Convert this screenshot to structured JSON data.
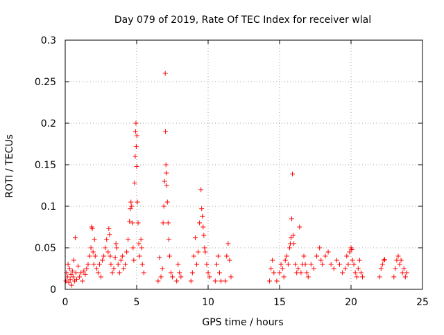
{
  "chart_data": {
    "type": "scatter",
    "title": "Day 079 of 2019, Rate Of TEC Index for receiver wlal",
    "xlabel": "GPS time / hours",
    "ylabel": "ROTI / TECUs",
    "xlim": [
      0,
      25
    ],
    "ylim": [
      0,
      0.3
    ],
    "x_ticks": [
      0,
      5,
      10,
      15,
      20,
      25
    ],
    "y_ticks": [
      0,
      0.05,
      0.1,
      0.15,
      0.2,
      0.25,
      0.3
    ],
    "x_tick_labels": [
      "0",
      "5",
      "10",
      "15",
      "20",
      "25"
    ],
    "y_tick_labels": [
      "0",
      "0.05",
      "0.1",
      "0.15",
      "0.2",
      "0.25",
      "0.3"
    ],
    "grid": true,
    "marker": "+",
    "color": "#ff0000",
    "series": [
      {
        "name": "ROTI",
        "points": [
          [
            0.05,
            0.01
          ],
          [
            0.1,
            0.02
          ],
          [
            0.15,
            0.015
          ],
          [
            0.2,
            0.03
          ],
          [
            0.25,
            0.008
          ],
          [
            0.3,
            0.025
          ],
          [
            0.35,
            0.012
          ],
          [
            0.4,
            0.018
          ],
          [
            0.45,
            0.005
          ],
          [
            0.5,
            0.022
          ],
          [
            0.55,
            0.015
          ],
          [
            0.6,
            0.035
          ],
          [
            0.65,
            0.01
          ],
          [
            0.7,
            0.062
          ],
          [
            0.75,
            0.02
          ],
          [
            0.8,
            0.012
          ],
          [
            0.9,
            0.028
          ],
          [
            1.0,
            0.015
          ],
          [
            1.1,
            0.02
          ],
          [
            1.2,
            0.01
          ],
          [
            1.3,
            0.022
          ],
          [
            1.4,
            0.018
          ],
          [
            1.5,
            0.025
          ],
          [
            1.6,
            0.03
          ],
          [
            1.7,
            0.04
          ],
          [
            1.8,
            0.05
          ],
          [
            1.85,
            0.075
          ],
          [
            1.9,
            0.073
          ],
          [
            1.95,
            0.045
          ],
          [
            2.0,
            0.03
          ],
          [
            2.05,
            0.06
          ],
          [
            2.1,
            0.04
          ],
          [
            2.2,
            0.025
          ],
          [
            2.3,
            0.02
          ],
          [
            2.4,
            0.03
          ],
          [
            2.5,
            0.015
          ],
          [
            2.6,
            0.035
          ],
          [
            2.7,
            0.04
          ],
          [
            2.8,
            0.05
          ],
          [
            2.9,
            0.06
          ],
          [
            3.0,
            0.045
          ],
          [
            3.05,
            0.073
          ],
          [
            3.1,
            0.066
          ],
          [
            3.15,
            0.04
          ],
          [
            3.2,
            0.03
          ],
          [
            3.3,
            0.02
          ],
          [
            3.4,
            0.025
          ],
          [
            3.5,
            0.038
          ],
          [
            3.55,
            0.055
          ],
          [
            3.6,
            0.05
          ],
          [
            3.7,
            0.03
          ],
          [
            3.8,
            0.02
          ],
          [
            3.9,
            0.035
          ],
          [
            4.0,
            0.04
          ],
          [
            4.1,
            0.025
          ],
          [
            4.2,
            0.03
          ],
          [
            4.3,
            0.045
          ],
          [
            4.4,
            0.06
          ],
          [
            4.5,
            0.082
          ],
          [
            4.55,
            0.097
          ],
          [
            4.6,
            0.105
          ],
          [
            4.65,
            0.1
          ],
          [
            4.7,
            0.08
          ],
          [
            4.75,
            0.05
          ],
          [
            4.8,
            0.035
          ],
          [
            4.85,
            0.128
          ],
          [
            4.9,
            0.16
          ],
          [
            4.92,
            0.19
          ],
          [
            4.95,
            0.2
          ],
          [
            4.97,
            0.172
          ],
          [
            5.0,
            0.148
          ],
          [
            5.02,
            0.185
          ],
          [
            5.05,
            0.105
          ],
          [
            5.1,
            0.08
          ],
          [
            5.15,
            0.055
          ],
          [
            5.2,
            0.04
          ],
          [
            5.3,
            0.06
          ],
          [
            5.35,
            0.05
          ],
          [
            5.4,
            0.03
          ],
          [
            5.5,
            0.02
          ],
          [
            6.5,
            0.01
          ],
          [
            6.6,
            0.038
          ],
          [
            6.7,
            0.015
          ],
          [
            6.8,
            0.025
          ],
          [
            6.85,
            0.08
          ],
          [
            6.9,
            0.1
          ],
          [
            6.95,
            0.13
          ],
          [
            7.0,
            0.26
          ],
          [
            7.02,
            0.19
          ],
          [
            7.05,
            0.15
          ],
          [
            7.08,
            0.14
          ],
          [
            7.1,
            0.125
          ],
          [
            7.15,
            0.105
          ],
          [
            7.2,
            0.08
          ],
          [
            7.25,
            0.06
          ],
          [
            7.3,
            0.04
          ],
          [
            7.4,
            0.02
          ],
          [
            7.5,
            0.015
          ],
          [
            7.8,
            0.01
          ],
          [
            7.9,
            0.03
          ],
          [
            8.0,
            0.02
          ],
          [
            8.1,
            0.015
          ],
          [
            8.8,
            0.01
          ],
          [
            8.9,
            0.02
          ],
          [
            9.0,
            0.04
          ],
          [
            9.1,
            0.062
          ],
          [
            9.2,
            0.03
          ],
          [
            9.3,
            0.045
          ],
          [
            9.4,
            0.08
          ],
          [
            9.5,
            0.12
          ],
          [
            9.55,
            0.097
          ],
          [
            9.6,
            0.088
          ],
          [
            9.65,
            0.075
          ],
          [
            9.7,
            0.065
          ],
          [
            9.75,
            0.05
          ],
          [
            9.8,
            0.045
          ],
          [
            9.9,
            0.03
          ],
          [
            10.0,
            0.02
          ],
          [
            10.1,
            0.015
          ],
          [
            10.5,
            0.01
          ],
          [
            10.6,
            0.03
          ],
          [
            10.7,
            0.04
          ],
          [
            10.8,
            0.02
          ],
          [
            10.9,
            0.01
          ],
          [
            11.2,
            0.01
          ],
          [
            11.3,
            0.04
          ],
          [
            11.4,
            0.055
          ],
          [
            11.5,
            0.035
          ],
          [
            11.6,
            0.015
          ],
          [
            14.3,
            0.01
          ],
          [
            14.4,
            0.025
          ],
          [
            14.5,
            0.035
          ],
          [
            14.6,
            0.02
          ],
          [
            14.8,
            0.01
          ],
          [
            15.0,
            0.02
          ],
          [
            15.1,
            0.03
          ],
          [
            15.2,
            0.025
          ],
          [
            15.3,
            0.015
          ],
          [
            15.4,
            0.035
          ],
          [
            15.5,
            0.04
          ],
          [
            15.6,
            0.03
          ],
          [
            15.7,
            0.05
          ],
          [
            15.75,
            0.055
          ],
          [
            15.8,
            0.062
          ],
          [
            15.85,
            0.085
          ],
          [
            15.9,
            0.139
          ],
          [
            15.95,
            0.065
          ],
          [
            16.0,
            0.055
          ],
          [
            16.1,
            0.03
          ],
          [
            16.2,
            0.02
          ],
          [
            16.3,
            0.025
          ],
          [
            16.4,
            0.075
          ],
          [
            16.5,
            0.02
          ],
          [
            16.6,
            0.03
          ],
          [
            16.7,
            0.04
          ],
          [
            16.8,
            0.03
          ],
          [
            16.9,
            0.02
          ],
          [
            17.0,
            0.015
          ],
          [
            17.2,
            0.03
          ],
          [
            17.4,
            0.025
          ],
          [
            17.6,
            0.04
          ],
          [
            17.8,
            0.05
          ],
          [
            17.9,
            0.035
          ],
          [
            18.0,
            0.03
          ],
          [
            18.2,
            0.04
          ],
          [
            18.4,
            0.045
          ],
          [
            18.6,
            0.03
          ],
          [
            18.8,
            0.025
          ],
          [
            19.0,
            0.035
          ],
          [
            19.2,
            0.03
          ],
          [
            19.4,
            0.02
          ],
          [
            19.6,
            0.025
          ],
          [
            19.7,
            0.04
          ],
          [
            19.8,
            0.03
          ],
          [
            19.9,
            0.045
          ],
          [
            20.0,
            0.05
          ],
          [
            20.05,
            0.048
          ],
          [
            20.1,
            0.035
          ],
          [
            20.2,
            0.03
          ],
          [
            20.3,
            0.02
          ],
          [
            20.4,
            0.015
          ],
          [
            20.5,
            0.025
          ],
          [
            20.6,
            0.035
          ],
          [
            20.7,
            0.02
          ],
          [
            20.8,
            0.015
          ],
          [
            22.0,
            0.015
          ],
          [
            22.1,
            0.025
          ],
          [
            22.2,
            0.03
          ],
          [
            22.3,
            0.035
          ],
          [
            22.35,
            0.036
          ],
          [
            23.0,
            0.015
          ],
          [
            23.1,
            0.025
          ],
          [
            23.2,
            0.035
          ],
          [
            23.3,
            0.04
          ],
          [
            23.4,
            0.03
          ],
          [
            23.5,
            0.035
          ],
          [
            23.6,
            0.02
          ],
          [
            23.7,
            0.025
          ],
          [
            23.8,
            0.015
          ],
          [
            23.9,
            0.02
          ]
        ]
      }
    ]
  }
}
